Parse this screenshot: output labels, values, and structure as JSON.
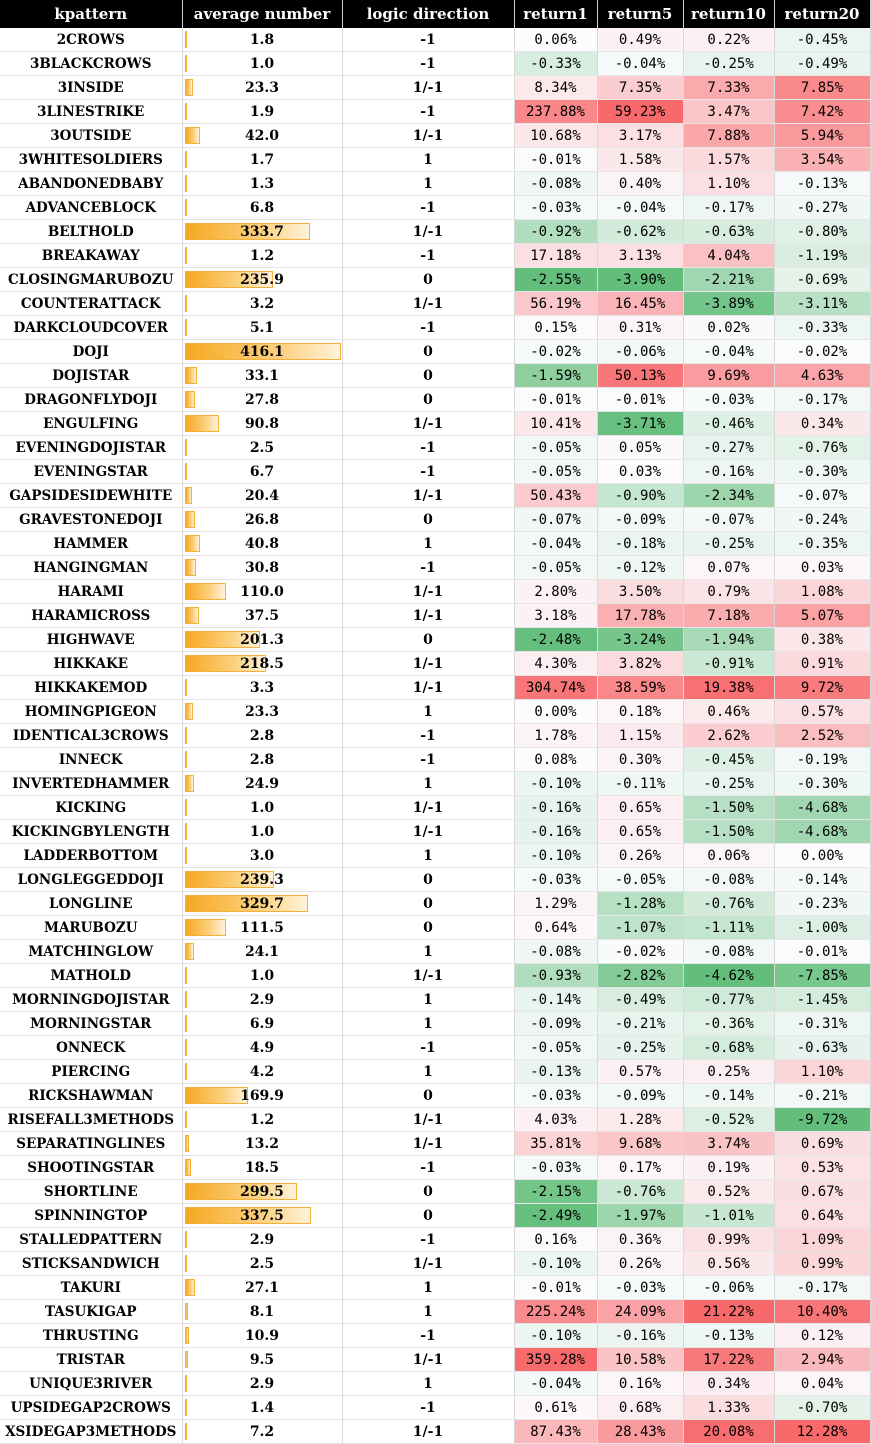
{
  "columns": [
    "kpattern",
    "average number",
    "logic direction",
    "return1",
    "return5",
    "return10",
    "return20"
  ],
  "bar_max": 416.1,
  "colors": {
    "header_bg": "#000000",
    "header_text": "#ffffff",
    "bar_fill": "#f6a821",
    "positive_scale": "#f8696b",
    "negative_scale": "#63be7b",
    "neutral": "#fcfcff"
  },
  "rows": [
    {
      "pattern": "2CROWS",
      "avg": "1.8",
      "dir": "-1",
      "r": [
        "0.06%",
        "0.49%",
        "0.22%",
        "-0.45%"
      ]
    },
    {
      "pattern": "3BLACKCROWS",
      "avg": "1.0",
      "dir": "-1",
      "r": [
        "-0.33%",
        "-0.04%",
        "-0.25%",
        "-0.49%"
      ]
    },
    {
      "pattern": "3INSIDE",
      "avg": "23.3",
      "dir": "1/-1",
      "r": [
        "8.34%",
        "7.35%",
        "7.33%",
        "7.85%"
      ]
    },
    {
      "pattern": "3LINESTRIKE",
      "avg": "1.9",
      "dir": "-1",
      "r": [
        "237.88%",
        "59.23%",
        "3.47%",
        "7.42%"
      ]
    },
    {
      "pattern": "3OUTSIDE",
      "avg": "42.0",
      "dir": "1/-1",
      "r": [
        "10.68%",
        "3.17%",
        "7.88%",
        "5.94%"
      ]
    },
    {
      "pattern": "3WHITESOLDIERS",
      "avg": "1.7",
      "dir": "1",
      "r": [
        "-0.01%",
        "1.58%",
        "1.57%",
        "3.54%"
      ]
    },
    {
      "pattern": "ABANDONEDBABY",
      "avg": "1.3",
      "dir": "1",
      "r": [
        "-0.08%",
        "0.40%",
        "1.10%",
        "-0.13%"
      ]
    },
    {
      "pattern": "ADVANCEBLOCK",
      "avg": "6.8",
      "dir": "-1",
      "r": [
        "-0.03%",
        "-0.04%",
        "-0.17%",
        "-0.27%"
      ]
    },
    {
      "pattern": "BELTHOLD",
      "avg": "333.7",
      "dir": "1/-1",
      "r": [
        "-0.92%",
        "-0.62%",
        "-0.63%",
        "-0.80%"
      ]
    },
    {
      "pattern": "BREAKAWAY",
      "avg": "1.2",
      "dir": "-1",
      "r": [
        "17.18%",
        "3.13%",
        "4.04%",
        "-1.19%"
      ]
    },
    {
      "pattern": "CLOSINGMARUBOZU",
      "avg": "235.9",
      "dir": "0",
      "r": [
        "-2.55%",
        "-3.90%",
        "-2.21%",
        "-0.69%"
      ]
    },
    {
      "pattern": "COUNTERATTACK",
      "avg": "3.2",
      "dir": "1/-1",
      "r": [
        "56.19%",
        "16.45%",
        "-3.89%",
        "-3.11%"
      ]
    },
    {
      "pattern": "DARKCLOUDCOVER",
      "avg": "5.1",
      "dir": "-1",
      "r": [
        "0.15%",
        "0.31%",
        "0.02%",
        "-0.33%"
      ]
    },
    {
      "pattern": "DOJI",
      "avg": "416.1",
      "dir": "0",
      "r": [
        "-0.02%",
        "-0.06%",
        "-0.04%",
        "-0.02%"
      ]
    },
    {
      "pattern": "DOJISTAR",
      "avg": "33.1",
      "dir": "0",
      "r": [
        "-1.59%",
        "50.13%",
        "9.69%",
        "4.63%"
      ]
    },
    {
      "pattern": "DRAGONFLYDOJI",
      "avg": "27.8",
      "dir": "0",
      "r": [
        "-0.01%",
        "-0.01%",
        "-0.03%",
        "-0.17%"
      ]
    },
    {
      "pattern": "ENGULFING",
      "avg": "90.8",
      "dir": "1/-1",
      "r": [
        "10.41%",
        "-3.71%",
        "-0.46%",
        "0.34%"
      ]
    },
    {
      "pattern": "EVENINGDOJISTAR",
      "avg": "2.5",
      "dir": "-1",
      "r": [
        "-0.05%",
        "0.05%",
        "-0.27%",
        "-0.76%"
      ]
    },
    {
      "pattern": "EVENINGSTAR",
      "avg": "6.7",
      "dir": "-1",
      "r": [
        "-0.05%",
        "0.03%",
        "-0.16%",
        "-0.30%"
      ]
    },
    {
      "pattern": "GAPSIDESIDEWHITE",
      "avg": "20.4",
      "dir": "1/-1",
      "r": [
        "50.43%",
        "-0.90%",
        "-2.34%",
        "-0.07%"
      ]
    },
    {
      "pattern": "GRAVESTONEDOJI",
      "avg": "26.8",
      "dir": "0",
      "r": [
        "-0.07%",
        "-0.09%",
        "-0.07%",
        "-0.24%"
      ]
    },
    {
      "pattern": "HAMMER",
      "avg": "40.8",
      "dir": "1",
      "r": [
        "-0.04%",
        "-0.18%",
        "-0.25%",
        "-0.35%"
      ]
    },
    {
      "pattern": "HANGINGMAN",
      "avg": "30.8",
      "dir": "-1",
      "r": [
        "-0.05%",
        "-0.12%",
        "0.07%",
        "0.03%"
      ]
    },
    {
      "pattern": "HARAMI",
      "avg": "110.0",
      "dir": "1/-1",
      "r": [
        "2.80%",
        "3.50%",
        "0.79%",
        "1.08%"
      ]
    },
    {
      "pattern": "HARAMICROSS",
      "avg": "37.5",
      "dir": "1/-1",
      "r": [
        "3.18%",
        "17.78%",
        "7.18%",
        "5.07%"
      ]
    },
    {
      "pattern": "HIGHWAVE",
      "avg": "201.3",
      "dir": "0",
      "r": [
        "-2.48%",
        "-3.24%",
        "-1.94%",
        "0.38%"
      ]
    },
    {
      "pattern": "HIKKAKE",
      "avg": "218.5",
      "dir": "1/-1",
      "r": [
        "4.30%",
        "3.82%",
        "-0.91%",
        "0.91%"
      ]
    },
    {
      "pattern": "HIKKAKEMOD",
      "avg": "3.3",
      "dir": "1/-1",
      "r": [
        "304.74%",
        "38.59%",
        "19.38%",
        "9.72%"
      ]
    },
    {
      "pattern": "HOMINGPIGEON",
      "avg": "23.3",
      "dir": "1",
      "r": [
        "0.00%",
        "0.18%",
        "0.46%",
        "0.57%"
      ]
    },
    {
      "pattern": "IDENTICAL3CROWS",
      "avg": "2.8",
      "dir": "-1",
      "r": [
        "1.78%",
        "1.15%",
        "2.62%",
        "2.52%"
      ]
    },
    {
      "pattern": "INNECK",
      "avg": "2.8",
      "dir": "-1",
      "r": [
        "0.08%",
        "0.30%",
        "-0.45%",
        "-0.19%"
      ]
    },
    {
      "pattern": "INVERTEDHAMMER",
      "avg": "24.9",
      "dir": "1",
      "r": [
        "-0.10%",
        "-0.11%",
        "-0.25%",
        "-0.30%"
      ]
    },
    {
      "pattern": "KICKING",
      "avg": "1.0",
      "dir": "1/-1",
      "r": [
        "-0.16%",
        "0.65%",
        "-1.50%",
        "-4.68%"
      ]
    },
    {
      "pattern": "KICKINGBYLENGTH",
      "avg": "1.0",
      "dir": "1/-1",
      "r": [
        "-0.16%",
        "0.65%",
        "-1.50%",
        "-4.68%"
      ]
    },
    {
      "pattern": "LADDERBOTTOM",
      "avg": "3.0",
      "dir": "1",
      "r": [
        "-0.10%",
        "0.26%",
        "0.06%",
        "0.00%"
      ]
    },
    {
      "pattern": "LONGLEGGEDDOJI",
      "avg": "239.3",
      "dir": "0",
      "r": [
        "-0.03%",
        "-0.05%",
        "-0.08%",
        "-0.14%"
      ]
    },
    {
      "pattern": "LONGLINE",
      "avg": "329.7",
      "dir": "0",
      "r": [
        "1.29%",
        "-1.28%",
        "-0.76%",
        "-0.23%"
      ]
    },
    {
      "pattern": "MARUBOZU",
      "avg": "111.5",
      "dir": "0",
      "r": [
        "0.64%",
        "-1.07%",
        "-1.11%",
        "-1.00%"
      ]
    },
    {
      "pattern": "MATCHINGLOW",
      "avg": "24.1",
      "dir": "1",
      "r": [
        "-0.08%",
        "-0.02%",
        "-0.08%",
        "-0.01%"
      ]
    },
    {
      "pattern": "MATHOLD",
      "avg": "1.0",
      "dir": "1/-1",
      "r": [
        "-0.93%",
        "-2.82%",
        "-4.62%",
        "-7.85%"
      ]
    },
    {
      "pattern": "MORNINGDOJISTAR",
      "avg": "2.9",
      "dir": "1",
      "r": [
        "-0.14%",
        "-0.49%",
        "-0.77%",
        "-1.45%"
      ]
    },
    {
      "pattern": "MORNINGSTAR",
      "avg": "6.9",
      "dir": "1",
      "r": [
        "-0.09%",
        "-0.21%",
        "-0.36%",
        "-0.31%"
      ]
    },
    {
      "pattern": "ONNECK",
      "avg": "4.9",
      "dir": "-1",
      "r": [
        "-0.05%",
        "-0.25%",
        "-0.68%",
        "-0.63%"
      ]
    },
    {
      "pattern": "PIERCING",
      "avg": "4.2",
      "dir": "1",
      "r": [
        "-0.13%",
        "0.57%",
        "0.25%",
        "1.10%"
      ]
    },
    {
      "pattern": "RICKSHAWMAN",
      "avg": "169.9",
      "dir": "0",
      "r": [
        "-0.03%",
        "-0.09%",
        "-0.14%",
        "-0.21%"
      ]
    },
    {
      "pattern": "RISEFALL3METHODS",
      "avg": "1.2",
      "dir": "1/-1",
      "r": [
        "4.03%",
        "1.28%",
        "-0.52%",
        "-9.72%"
      ]
    },
    {
      "pattern": "SEPARATINGLINES",
      "avg": "13.2",
      "dir": "1/-1",
      "r": [
        "35.81%",
        "9.68%",
        "3.74%",
        "0.69%"
      ]
    },
    {
      "pattern": "SHOOTINGSTAR",
      "avg": "18.5",
      "dir": "-1",
      "r": [
        "-0.03%",
        "0.17%",
        "0.19%",
        "0.53%"
      ]
    },
    {
      "pattern": "SHORTLINE",
      "avg": "299.5",
      "dir": "0",
      "r": [
        "-2.15%",
        "-0.76%",
        "0.52%",
        "0.67%"
      ]
    },
    {
      "pattern": "SPINNINGTOP",
      "avg": "337.5",
      "dir": "0",
      "r": [
        "-2.49%",
        "-1.97%",
        "-1.01%",
        "0.64%"
      ]
    },
    {
      "pattern": "STALLEDPATTERN",
      "avg": "2.9",
      "dir": "-1",
      "r": [
        "0.16%",
        "0.36%",
        "0.99%",
        "1.09%"
      ]
    },
    {
      "pattern": "STICKSANDWICH",
      "avg": "2.5",
      "dir": "1/-1",
      "r": [
        "-0.10%",
        "0.26%",
        "0.56%",
        "0.99%"
      ]
    },
    {
      "pattern": "TAKURI",
      "avg": "27.1",
      "dir": "1",
      "r": [
        "-0.01%",
        "-0.03%",
        "-0.06%",
        "-0.17%"
      ]
    },
    {
      "pattern": "TASUKIGAP",
      "avg": "8.1",
      "dir": "1",
      "r": [
        "225.24%",
        "24.09%",
        "21.22%",
        "10.40%"
      ]
    },
    {
      "pattern": "THRUSTING",
      "avg": "10.9",
      "dir": "-1",
      "r": [
        "-0.10%",
        "-0.16%",
        "-0.13%",
        "0.12%"
      ]
    },
    {
      "pattern": "TRISTAR",
      "avg": "9.5",
      "dir": "1/-1",
      "r": [
        "359.28%",
        "10.58%",
        "17.22%",
        "2.94%"
      ]
    },
    {
      "pattern": "UNIQUE3RIVER",
      "avg": "2.9",
      "dir": "1",
      "r": [
        "-0.04%",
        "0.16%",
        "0.34%",
        "0.04%"
      ]
    },
    {
      "pattern": "UPSIDEGAP2CROWS",
      "avg": "1.4",
      "dir": "-1",
      "r": [
        "0.61%",
        "0.68%",
        "1.33%",
        "-0.70%"
      ]
    },
    {
      "pattern": "XSIDEGAP3METHODS",
      "avg": "7.2",
      "dir": "1/-1",
      "r": [
        "87.43%",
        "28.43%",
        "20.08%",
        "12.28%"
      ]
    }
  ]
}
